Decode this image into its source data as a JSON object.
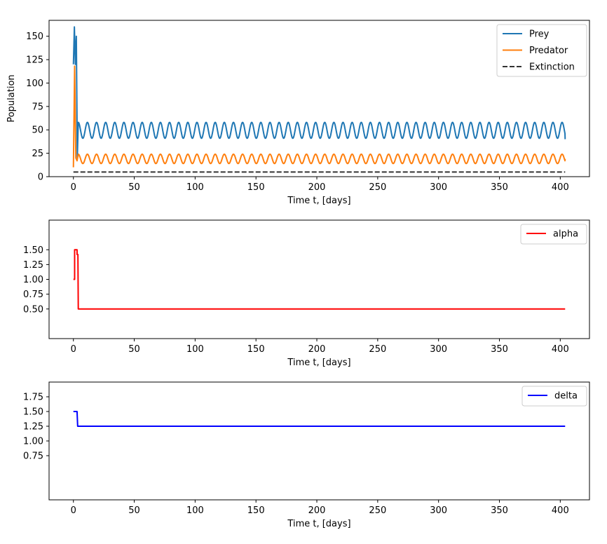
{
  "chart_data": [
    {
      "type": "line",
      "xlabel": "Time t, [days]",
      "ylabel": "Population",
      "xlim": [
        -20,
        424
      ],
      "ylim": [
        0,
        167
      ],
      "xticks": [
        0,
        50,
        100,
        150,
        200,
        250,
        300,
        350,
        400
      ],
      "yticks": [
        0,
        25,
        50,
        75,
        100,
        125,
        150
      ],
      "legend_position": "top-right",
      "grid": false,
      "series": [
        {
          "name": "Prey",
          "color": "#1f77b4",
          "dash": "solid",
          "transient": {
            "x_start": 0,
            "x_end": 4,
            "y_points": [
              120,
              160,
              120,
              150,
              20,
              58
            ]
          },
          "oscillation": {
            "x_start": 4,
            "x_end": 404,
            "min": 41,
            "max": 58,
            "period": 7.5,
            "end_value": 40
          }
        },
        {
          "name": "Predator",
          "color": "#ff7f0e",
          "dash": "solid",
          "transient": {
            "x_start": 0,
            "x_end": 4,
            "y_points": [
              10,
              118,
              20,
              17,
              24
            ]
          },
          "oscillation": {
            "x_start": 4,
            "x_end": 404,
            "min": 14,
            "max": 24,
            "period": 7.5,
            "end_value": 19
          }
        },
        {
          "name": "Extinction",
          "color": "#333333",
          "dash": "dashed",
          "points": [
            [
              0,
              5
            ],
            [
              404,
              5
            ]
          ]
        }
      ]
    },
    {
      "type": "line",
      "xlabel": "Time t, [days]",
      "ylabel": "",
      "xlim": [
        -20,
        424
      ],
      "ylim": [
        0,
        2.0
      ],
      "xticks": [
        0,
        50,
        100,
        150,
        200,
        250,
        300,
        350,
        400
      ],
      "yticks": [
        0.5,
        0.75,
        1.0,
        1.25,
        1.5
      ],
      "ytick_labels": [
        "0.50",
        "0.75",
        "1.00",
        "1.25",
        "1.50"
      ],
      "legend_position": "top-right",
      "grid": false,
      "series": [
        {
          "name": "alpha",
          "color": "#ff0000",
          "dash": "solid",
          "points": [
            [
              0,
              1.0
            ],
            [
              1,
              1.0
            ],
            [
              1,
              1.5
            ],
            [
              3,
              1.5
            ],
            [
              3,
              1.42
            ],
            [
              3.7,
              1.42
            ],
            [
              4,
              0.5
            ],
            [
              404,
              0.5
            ]
          ]
        }
      ]
    },
    {
      "type": "line",
      "xlabel": "Time t, [days]",
      "ylabel": "",
      "xlim": [
        -20,
        424
      ],
      "ylim": [
        0,
        2.0
      ],
      "xticks": [
        0,
        50,
        100,
        150,
        200,
        250,
        300,
        350,
        400
      ],
      "yticks": [
        0.75,
        1.0,
        1.25,
        1.5,
        1.75
      ],
      "ytick_labels": [
        "0.75",
        "1.00",
        "1.25",
        "1.50",
        "1.75"
      ],
      "legend_position": "top-right",
      "grid": false,
      "series": [
        {
          "name": "delta",
          "color": "#0000ff",
          "dash": "solid",
          "points": [
            [
              0,
              1.5
            ],
            [
              3,
              1.5
            ],
            [
              3.5,
              1.25
            ],
            [
              404,
              1.25
            ]
          ]
        }
      ]
    }
  ]
}
